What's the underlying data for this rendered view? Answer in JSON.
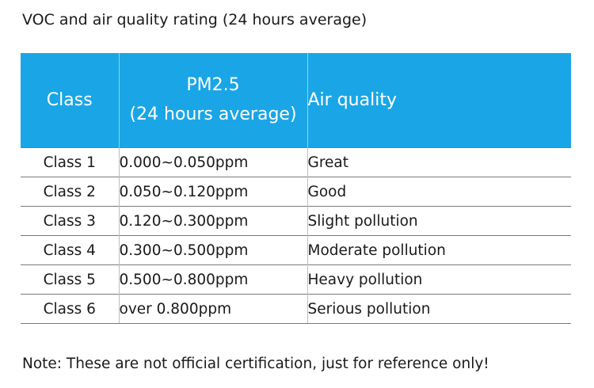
{
  "title": "VOC and air quality rating (24 hours average)",
  "table": {
    "headers": {
      "class": "Class",
      "pm_line1": "PM2.5",
      "pm_line2": "(24 hours average)",
      "air_quality": "Air quality"
    },
    "rows": [
      {
        "class": "Class 1",
        "range": "0.000~0.050ppm",
        "quality": "Great"
      },
      {
        "class": "Class 2",
        "range": "0.050~0.120ppm",
        "quality": "Good"
      },
      {
        "class": "Class 3",
        "range": "0.120~0.300ppm",
        "quality": "Slight pollution"
      },
      {
        "class": "Class 4",
        "range": "0.300~0.500ppm",
        "quality": "Moderate pollution"
      },
      {
        "class": "Class 5",
        "range": "0.500~0.800ppm",
        "quality": "Heavy pollution"
      },
      {
        "class": "Class 6",
        "range": "over 0.800ppm",
        "quality": "Serious pollution"
      }
    ]
  },
  "note": "Note: These are not official certification, just for reference only!",
  "colors": {
    "header_background": "#1aa6e6",
    "header_text": "#ffffff"
  }
}
